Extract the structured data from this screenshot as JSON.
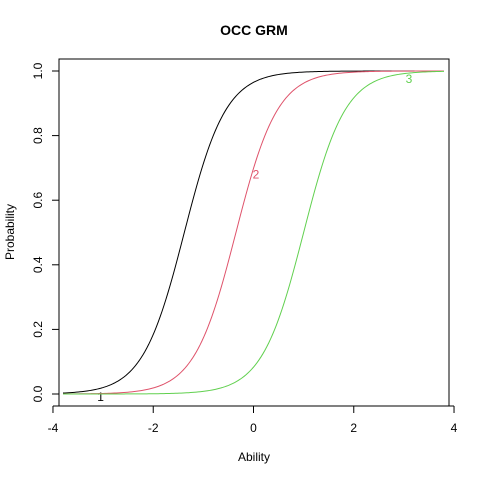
{
  "chart_data": {
    "type": "line",
    "title": "OCC GRM",
    "xlabel": "Ability",
    "ylabel": "Probability",
    "xlim": [
      -3.8,
      3.8
    ],
    "ylim": [
      0,
      1
    ],
    "x_ticks": [
      "-4",
      "-2",
      "0",
      "2",
      "4"
    ],
    "y_ticks": [
      "0.0",
      "0.2",
      "0.4",
      "0.6",
      "0.8",
      "1.0"
    ],
    "grid": false,
    "legend": "none",
    "series": [
      {
        "name": "1",
        "color": "#000000",
        "curve": "logistic",
        "slope": 2.4,
        "location": -1.38,
        "label_at": [
          -3.05,
          -0.01
        ]
      },
      {
        "name": "2",
        "color": "#DF536B",
        "curve": "logistic",
        "slope": 2.4,
        "location": -0.35,
        "label_at": [
          0.05,
          0.68
        ]
      },
      {
        "name": "3",
        "color": "#61D04F",
        "curve": "logistic",
        "slope": 2.4,
        "location": 1.0,
        "label_at": [
          3.1,
          0.975
        ]
      }
    ]
  }
}
